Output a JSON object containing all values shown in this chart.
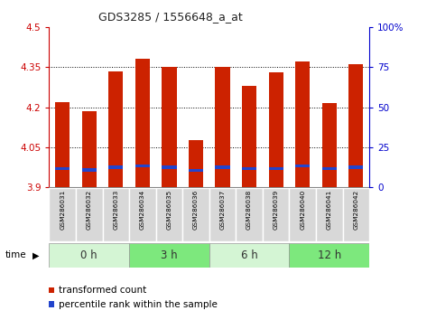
{
  "title": "GDS3285 / 1556648_a_at",
  "samples": [
    "GSM286031",
    "GSM286032",
    "GSM286033",
    "GSM286034",
    "GSM286035",
    "GSM286036",
    "GSM286037",
    "GSM286038",
    "GSM286039",
    "GSM286040",
    "GSM286041",
    "GSM286042"
  ],
  "bar_values": [
    4.22,
    4.185,
    4.335,
    4.38,
    4.35,
    4.075,
    4.35,
    4.28,
    4.33,
    4.37,
    4.215,
    4.36
  ],
  "blue_marker_values": [
    3.97,
    3.965,
    3.975,
    3.98,
    3.975,
    3.963,
    3.975,
    3.97,
    3.97,
    3.98,
    3.97,
    3.975
  ],
  "ymin": 3.9,
  "ymax": 4.5,
  "yticks": [
    3.9,
    4.05,
    4.2,
    4.35,
    4.5
  ],
  "y2ticks": [
    0,
    25,
    50,
    75,
    100
  ],
  "y2tick_labels": [
    "0",
    "25",
    "50",
    "75",
    "100%"
  ],
  "time_groups": [
    {
      "label": "0 h",
      "start": 0,
      "end": 3,
      "color": "#d4f5d4"
    },
    {
      "label": "3 h",
      "start": 3,
      "end": 6,
      "color": "#7de87d"
    },
    {
      "label": "6 h",
      "start": 6,
      "end": 9,
      "color": "#d4f5d4"
    },
    {
      "label": "12 h",
      "start": 9,
      "end": 12,
      "color": "#7de87d"
    }
  ],
  "bar_color": "#cc2200",
  "blue_color": "#2244cc",
  "bar_width": 0.55,
  "sample_box_color": "#d8d8d8",
  "legend_items": [
    {
      "color": "#cc2200",
      "label": "transformed count"
    },
    {
      "color": "#2244cc",
      "label": "percentile rank within the sample"
    }
  ],
  "title_color": "#333333",
  "left_axis_color": "#cc0000",
  "right_axis_color": "#0000cc",
  "grid_yticks": [
    4.05,
    4.2,
    4.35
  ]
}
